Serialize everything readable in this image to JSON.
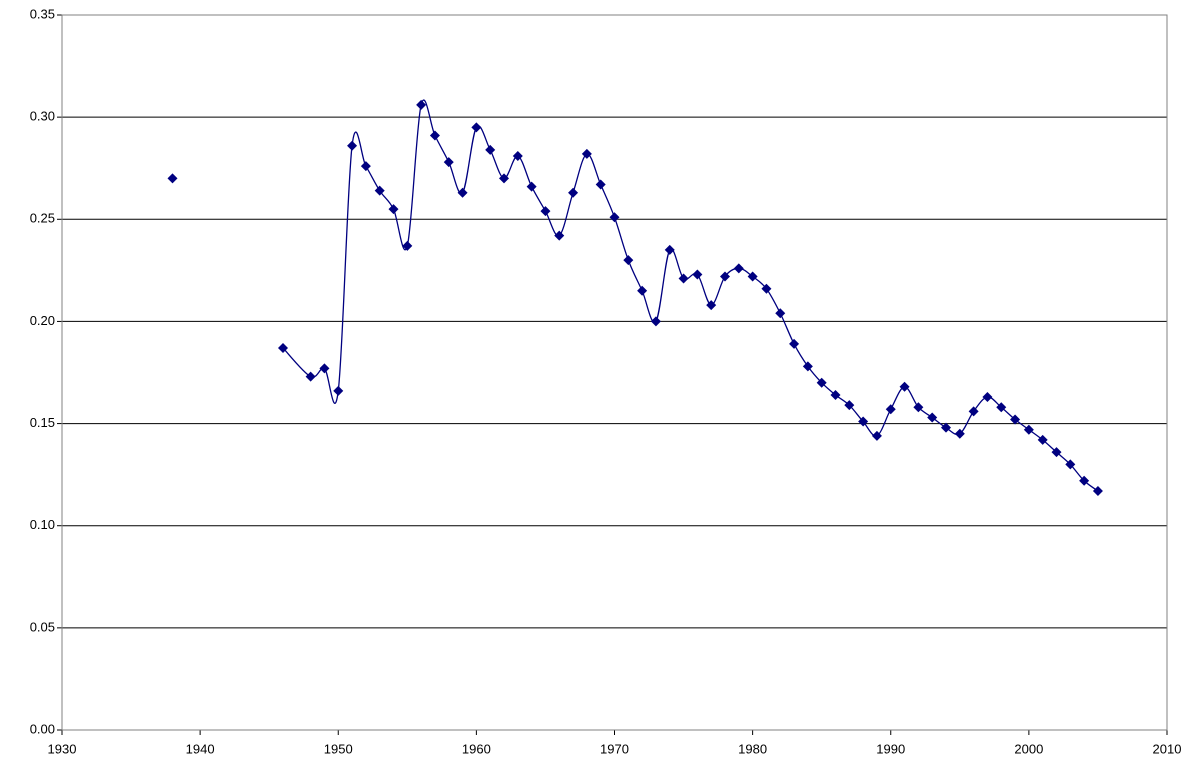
{
  "chart_data": {
    "type": "line",
    "smooth": true,
    "marker": "diamond",
    "color": "#000080",
    "grid": true,
    "x": [
      1938,
      1939,
      1946,
      1948,
      1949,
      1950,
      1951,
      1952,
      1953,
      1954,
      1955,
      1956,
      1957,
      1958,
      1959,
      1960,
      1961,
      1962,
      1963,
      1964,
      1965,
      1966,
      1967,
      1968,
      1969,
      1970,
      1971,
      1972,
      1973,
      1974,
      1975,
      1976,
      1977,
      1978,
      1979,
      1980,
      1981,
      1982,
      1983,
      1984,
      1985,
      1986,
      1987,
      1988,
      1989,
      1990,
      1991,
      1992,
      1993,
      1994,
      1995,
      1996,
      1997,
      1998,
      1999,
      2000,
      2001,
      2002,
      2003,
      2004,
      2005
    ],
    "values": [
      0.27,
      null,
      0.187,
      0.173,
      0.177,
      0.166,
      0.286,
      0.276,
      0.264,
      0.255,
      0.237,
      0.306,
      0.291,
      0.278,
      0.263,
      0.295,
      0.284,
      0.27,
      0.281,
      0.266,
      0.254,
      0.242,
      0.263,
      0.282,
      0.267,
      0.251,
      0.23,
      0.215,
      0.2,
      0.235,
      0.221,
      0.223,
      0.208,
      0.222,
      0.226,
      0.222,
      0.216,
      0.204,
      0.189,
      0.178,
      0.17,
      0.164,
      0.159,
      0.151,
      0.144,
      0.157,
      0.168,
      0.158,
      0.153,
      0.148,
      0.145,
      0.156,
      0.163,
      0.158,
      0.152,
      0.147,
      0.142,
      0.136,
      0.13,
      0.122,
      0.117
    ],
    "xlim": [
      1930,
      2010
    ],
    "xticks": [
      1930,
      1940,
      1950,
      1960,
      1970,
      1980,
      1990,
      2000,
      2010
    ],
    "ylim": [
      0,
      0.35
    ],
    "yticks": [
      {
        "value": 0,
        "label": "0.00"
      },
      {
        "value": 0.05,
        "label": "0.05"
      },
      {
        "value": 0.1,
        "label": "0.10"
      },
      {
        "value": 0.15,
        "label": "0.15"
      },
      {
        "value": 0.2,
        "label": "0.20"
      },
      {
        "value": 0.25,
        "label": "0.25"
      },
      {
        "value": 0.3,
        "label": "0.30"
      },
      {
        "value": 0.35,
        "label": "0.35"
      }
    ]
  }
}
